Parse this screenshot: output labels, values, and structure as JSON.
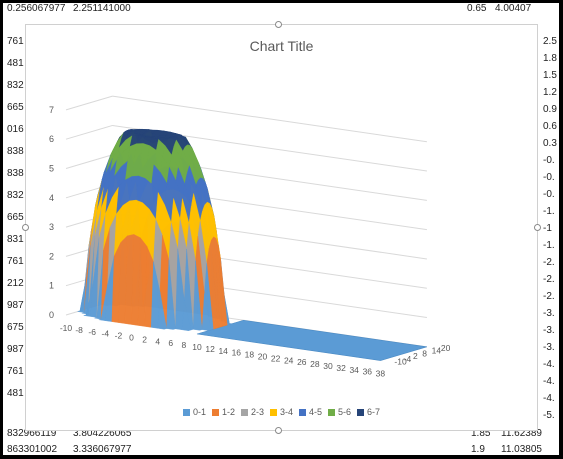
{
  "spreadsheet": {
    "left_cells": [
      "761",
      "481",
      "832",
      "665",
      "016",
      "838",
      "838",
      "832",
      "665",
      "831",
      "761",
      "212",
      "987",
      "675",
      "987",
      "761",
      "481"
    ],
    "right_cells": [
      "2.5",
      "1.8",
      "1.5",
      "1.2",
      "0.9",
      "0.6",
      "0.3",
      "-0.",
      "-0.",
      "-0.",
      "-1.",
      "-1",
      "-1.",
      "-2.",
      "-2.",
      "-2.",
      "-3.",
      "-3.",
      "-3.",
      "-4.",
      "-4.",
      "-4.",
      "-5."
    ],
    "top_row": {
      "a": "0.256067977",
      "b": "2.251141000",
      "c": "0.65",
      "d": "4.00407"
    },
    "bottom_row": {
      "a": "832966119",
      "b": "3.804226065",
      "c": "1.85",
      "d": "11.62389"
    },
    "bottom_row2": {
      "a": "863301002",
      "b": "3.336067977",
      "c": "1.9",
      "d": "11.03805"
    }
  },
  "chart": {
    "title": "Chart Title",
    "series_colors": [
      "#5b9bd5",
      "#ed7d31",
      "#a5a5a5",
      "#ffc000",
      "#4472c4",
      "#70ad47",
      "#264478"
    ]
  },
  "chart_data": {
    "type": "surface",
    "title": "Chart Title",
    "z_ticks": [
      "0",
      "1",
      "2",
      "3",
      "4",
      "5",
      "6",
      "7"
    ],
    "zlim": [
      0,
      7
    ],
    "x_ticks": [
      "-10",
      "-8",
      "-6",
      "-4",
      "-2",
      "0",
      "2",
      "4",
      "6",
      "8",
      "10",
      "12",
      "14",
      "16",
      "18",
      "20",
      "22",
      "24",
      "26",
      "28",
      "30",
      "32",
      "34",
      "36",
      "38"
    ],
    "y_ticks": [
      "-10",
      "-4",
      "2",
      "8",
      "14",
      "20"
    ],
    "legend": [
      "0-1",
      "1-2",
      "2-3",
      "3-4",
      "4-5",
      "5-6",
      "6-7"
    ]
  }
}
